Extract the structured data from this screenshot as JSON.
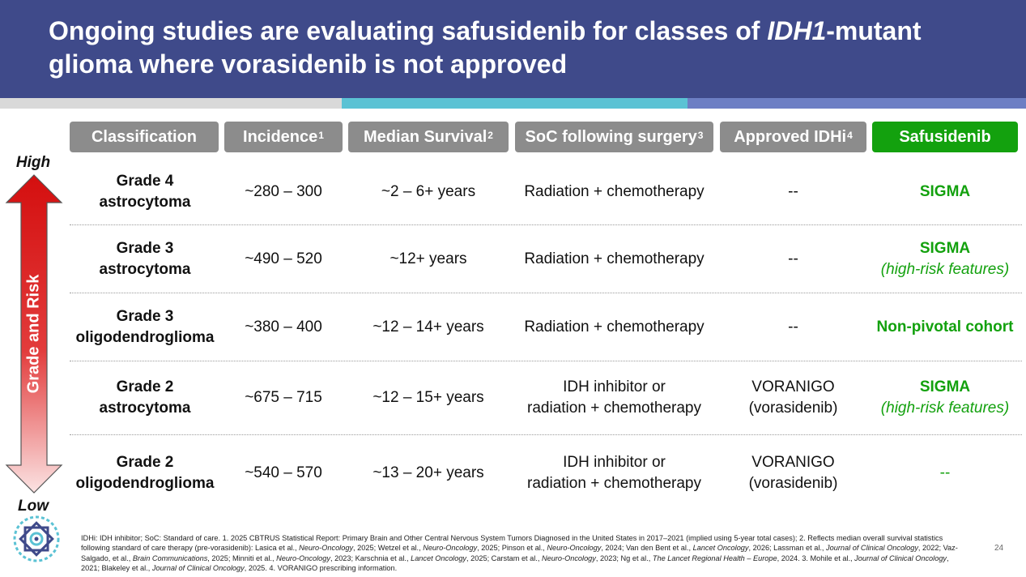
{
  "title": {
    "part1": "Ongoing studies are evaluating safusidenib for classes of ",
    "italic": "IDH1",
    "part2": "-mutant glioma where vorasidenib is not approved"
  },
  "columns": [
    {
      "label": "Classification",
      "sup": ""
    },
    {
      "label": "Incidence",
      "sup": "1"
    },
    {
      "label": "Median Survival",
      "sup": "2"
    },
    {
      "label": "SoC following surgery",
      "sup": "3"
    },
    {
      "label": "Approved IDHi",
      "sup": "4"
    },
    {
      "label": "Safusidenib",
      "sup": ""
    }
  ],
  "rows": [
    {
      "class1": "Grade 4",
      "class2": "astrocytoma",
      "incidence": "~280 – 300",
      "survival": "~2 – 6+ years",
      "soc1": "Radiation + chemotherapy",
      "soc2": "",
      "idhi1": "--",
      "idhi2": "",
      "saf1": "SIGMA",
      "saf2": ""
    },
    {
      "class1": "Grade 3",
      "class2": "astrocytoma",
      "incidence": "~490 – 520",
      "survival": "~12+ years",
      "soc1": "Radiation + chemotherapy",
      "soc2": "",
      "idhi1": "--",
      "idhi2": "",
      "saf1": "SIGMA",
      "saf2": "(high-risk features)"
    },
    {
      "class1": "Grade 3",
      "class2": "oligodendroglioma",
      "incidence": "~380 – 400",
      "survival": "~12 – 14+ years",
      "soc1": "Radiation + chemotherapy",
      "soc2": "",
      "idhi1": "--",
      "idhi2": "",
      "saf1": "Non-pivotal cohort",
      "saf2": ""
    },
    {
      "class1": "Grade 2",
      "class2": "astrocytoma",
      "incidence": "~675 – 715",
      "survival": "~12 – 15+ years",
      "soc1": "IDH inhibitor or",
      "soc2": "radiation + chemotherapy",
      "idhi1": "VORANIGO",
      "idhi2": "(vorasidenib)",
      "saf1": "SIGMA",
      "saf2": "(high-risk features)"
    },
    {
      "class1": "Grade 2",
      "class2": "oligodendroglioma",
      "incidence": "~540 – 570",
      "survival": "~13 – 20+ years",
      "soc1": "IDH inhibitor or",
      "soc2": "radiation + chemotherapy",
      "idhi1": "VORANIGO",
      "idhi2": "(vorasidenib)",
      "saf1": "--",
      "saf2": ""
    }
  ],
  "axis": {
    "high": "High",
    "low": "Low",
    "label": "Grade and Risk"
  },
  "colors": {
    "header_bg": "#3f4a8a",
    "column_header": "#8c8c8c",
    "safusidenib": "#13a10e",
    "arrow_red": "#d40f0f"
  },
  "footnote": {
    "s1": "IDHi: IDH inhibitor; SoC: Standard of care. 1. 2025 CBTRUS Statistical Report: Primary Brain and Other Central Nervous System Tumors Diagnosed in the United States in 2017–2021 (implied using 5-year total cases); 2. Reflects median overall survival statistics following standard of care therapy (pre-vorasidenib): Lasica et al., ",
    "j1": "Neuro-Oncology",
    "s2": ", 2025; Wetzel et al., ",
    "j2": "Neuro-Oncology",
    "s3": ", 2025; Pinson et al., ",
    "j3": "Neuro-Oncology",
    "s4": ", 2024; Van den Bent et al., ",
    "j4": "Lancet Oncology",
    "s5": ", 2026; Lassman et al., ",
    "j5": "Journal of Clinical Oncology",
    "s6": ", 2022; Vaz-Salgado, et al., ",
    "j6": "Brain Communications",
    "s7": ", 2025; Minniti et al., ",
    "j7": "Neuro-Oncology",
    "s8": ", 2023; Karschnia et al., ",
    "j8": "Lancet Oncology",
    "s9": ", 2025; Carstam et al., ",
    "j9": "Neuro-Oncology",
    "s10": ", 2023; Ng et al., ",
    "j10": "The Lancet Regional Health – Europe",
    "s11": ", 2024. 3. Mohile et al., ",
    "j11": "Journal of Clinical Oncology",
    "s12": ", 2021; Blakeley et al., ",
    "j12": "Journal of Clinical Oncology",
    "s13": ", 2025. 4. VORANIGO prescribing information."
  },
  "page_number": "24"
}
